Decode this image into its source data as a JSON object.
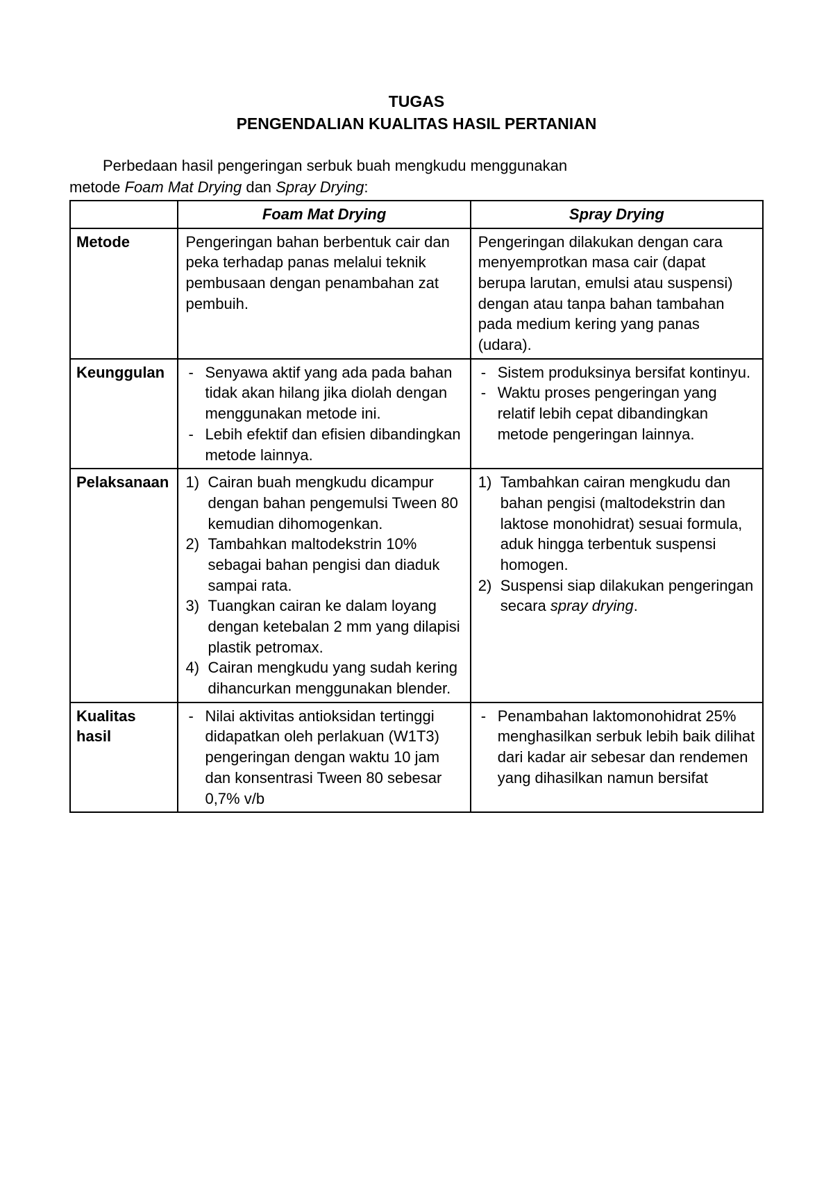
{
  "title_line1": "TUGAS",
  "title_line2": "PENGENDALIAN KUALITAS HASIL PERTANIAN",
  "intro_pre": "Perbedaan hasil pengeringan serbuk buah mengkudu menggunakan",
  "intro_line2_a": "metode ",
  "intro_line2_b": "Foam Mat Drying",
  "intro_line2_c": "  dan ",
  "intro_line2_d": "Spray Drying",
  "intro_line2_e": ":",
  "headers": {
    "col1": "",
    "col2": "Foam Mat Drying",
    "col3": "Spray Drying"
  },
  "rows": {
    "metode": {
      "label": "Metode",
      "foam": "Pengeringan bahan berbentuk cair dan peka terhadap panas melalui teknik pembusaan dengan penambahan zat pembuih.",
      "spray": "Pengeringan dilakukan dengan cara menyemprotkan masa cair (dapat berupa larutan, emulsi atau suspensi) dengan atau tanpa bahan tambahan pada medium kering yang panas (udara)."
    },
    "keunggulan": {
      "label": "Keunggulan",
      "foam_items": [
        "Senyawa aktif  yang ada pada bahan tidak akan hilang jika diolah dengan menggunakan metode ini.",
        "Lebih efektif dan efisien dibandingkan metode lainnya."
      ],
      "spray_items": [
        "Sistem produksinya bersifat kontinyu.",
        "Waktu proses pengeringan yang relatif lebih cepat dibandingkan metode pengeringan lainnya."
      ]
    },
    "pelaksanaan": {
      "label": "Pelaksanaan",
      "foam_items": [
        "Cairan buah mengkudu dicampur dengan bahan pengemulsi Tween 80 kemudian dihomogenkan.",
        "Tambahkan maltodekstrin 10% sebagai bahan pengisi dan diaduk sampai rata.",
        "Tuangkan cairan ke dalam loyang dengan ketebalan 2 mm yang dilapisi plastik petromax.",
        "Cairan mengkudu yang sudah kering dihancurkan menggunakan blender."
      ],
      "spray_items": [
        {
          "text_a": "Tambahkan cairan mengkudu dan bahan pengisi (maltodekstrin dan laktose monohidrat) sesuai formula, aduk hingga terbentuk suspensi homogen."
        },
        {
          "text_a": "Suspensi siap dilakukan pengeringan secara ",
          "text_i": "spray drying",
          "text_b": "."
        }
      ]
    },
    "kualitas": {
      "label": "Kualitas hasil",
      "foam_items": [
        "Nilai aktivitas antioksidan tertinggi didapatkan oleh perlakuan (W1T3) pengeringan dengan waktu 10 jam dan konsentrasi Tween 80 sebesar 0,7% v/b"
      ],
      "spray_items": [
        "Penambahan laktomonohidrat 25% menghasilkan serbuk lebih baik dilihat dari kadar air sebesar dan rendemen yang dihasilkan namun bersifat"
      ]
    }
  },
  "nums": {
    "n1": "1)",
    "n2": "2)",
    "n3": "3)",
    "n4": "4)"
  }
}
